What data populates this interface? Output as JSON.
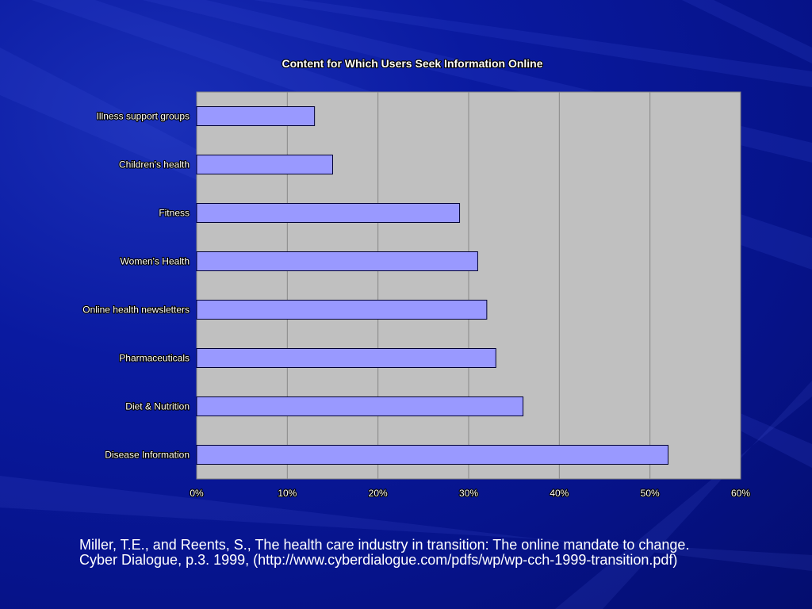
{
  "chart_data": {
    "type": "bar",
    "orientation": "horizontal",
    "title": "Content for Which Users Seek Information Online",
    "categories": [
      "Illness support groups",
      "Children's health",
      "Fitness",
      "Women's Health",
      "Online health newsletters",
      "Pharmaceuticals",
      "Diet & Nutrition",
      "Disease Information"
    ],
    "values": [
      13,
      15,
      29,
      31,
      32,
      33,
      36,
      52
    ],
    "xlim": [
      0,
      60
    ],
    "x_ticks": [
      "0%",
      "10%",
      "20%",
      "30%",
      "40%",
      "50%",
      "60%"
    ],
    "x_tick_values": [
      0,
      10,
      20,
      30,
      40,
      50,
      60
    ],
    "xlabel": "",
    "ylabel": "",
    "grid": "vertical",
    "legend": "none",
    "colors": {
      "bar_fill": "#9999ff",
      "bar_stroke": "#000033",
      "plot_background": "#c0c0c0",
      "gridline": "#888888",
      "label_text": "#ffffff"
    }
  },
  "citation": {
    "line1": "Miller, T.E., and Reents, S., The health care industry in transition: The online mandate to change.",
    "line2": "Cyber Dialogue, p.3. 1999, (http://www.cyberdialogue.com/pdfs/wp/wp-cch-1999-transition.pdf)"
  }
}
